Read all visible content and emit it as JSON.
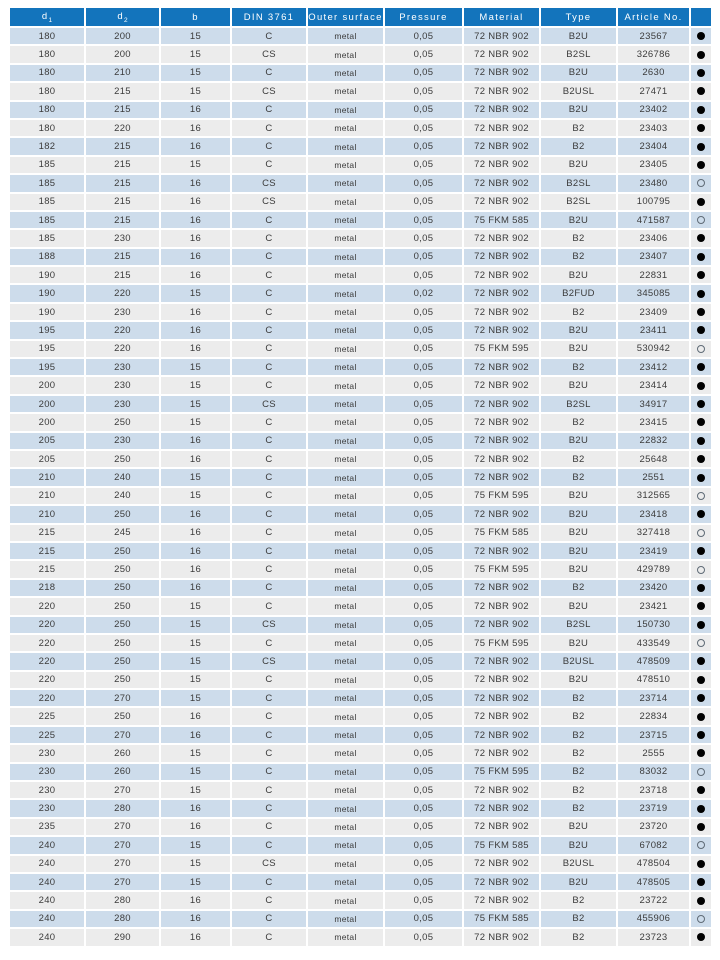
{
  "colors": {
    "header_background": "#1374BC",
    "header_text": "#FFFFFF",
    "row_alternate_blue": "#CDDCEB",
    "row_alternate_gray": "#ECECEC",
    "cell_text": "#3B3B3B",
    "availability_filled_dot": "#000000",
    "availability_open_ring": "#5F6B76"
  },
  "table": {
    "columns": [
      {
        "key": "d1",
        "label": "d",
        "sub": "1"
      },
      {
        "key": "d2",
        "label": "d",
        "sub": "2"
      },
      {
        "key": "b",
        "label": "b",
        "sub": ""
      },
      {
        "key": "din-3761",
        "label": "DIN 3761",
        "sub": ""
      },
      {
        "key": "outer-surface",
        "label": "Outer surface",
        "sub": ""
      },
      {
        "key": "pressure",
        "label": "Pressure",
        "sub": ""
      },
      {
        "key": "material",
        "label": "Material",
        "sub": ""
      },
      {
        "key": "type",
        "label": "Type",
        "sub": ""
      },
      {
        "key": "article-no",
        "label": "Article No.",
        "sub": ""
      },
      {
        "key": "availability",
        "label": "",
        "sub": ""
      }
    ],
    "rows": [
      [
        "180",
        "200",
        "15",
        "C",
        "metal",
        "0,05",
        "72 NBR 902",
        "B2U",
        "23567",
        "filled"
      ],
      [
        "180",
        "200",
        "15",
        "CS",
        "metal",
        "0,05",
        "72 NBR 902",
        "B2SL",
        "326786",
        "filled"
      ],
      [
        "180",
        "210",
        "15",
        "C",
        "metal",
        "0,05",
        "72 NBR 902",
        "B2U",
        "2630",
        "filled"
      ],
      [
        "180",
        "215",
        "15",
        "CS",
        "metal",
        "0,05",
        "72 NBR 902",
        "B2USL",
        "27471",
        "filled"
      ],
      [
        "180",
        "215",
        "16",
        "C",
        "metal",
        "0,05",
        "72 NBR 902",
        "B2U",
        "23402",
        "filled"
      ],
      [
        "180",
        "220",
        "16",
        "C",
        "metal",
        "0,05",
        "72 NBR 902",
        "B2",
        "23403",
        "filled"
      ],
      [
        "182",
        "215",
        "16",
        "C",
        "metal",
        "0,05",
        "72 NBR 902",
        "B2",
        "23404",
        "filled"
      ],
      [
        "185",
        "215",
        "15",
        "C",
        "metal",
        "0,05",
        "72 NBR 902",
        "B2U",
        "23405",
        "filled"
      ],
      [
        "185",
        "215",
        "16",
        "CS",
        "metal",
        "0,05",
        "72 NBR 902",
        "B2SL",
        "23480",
        "open"
      ],
      [
        "185",
        "215",
        "16",
        "CS",
        "metal",
        "0,05",
        "72 NBR 902",
        "B2SL",
        "100795",
        "filled"
      ],
      [
        "185",
        "215",
        "16",
        "C",
        "metal",
        "0,05",
        "75 FKM 585",
        "B2U",
        "471587",
        "open"
      ],
      [
        "185",
        "230",
        "16",
        "C",
        "metal",
        "0,05",
        "72 NBR 902",
        "B2",
        "23406",
        "filled"
      ],
      [
        "188",
        "215",
        "16",
        "C",
        "metal",
        "0,05",
        "72 NBR 902",
        "B2",
        "23407",
        "filled"
      ],
      [
        "190",
        "215",
        "16",
        "C",
        "metal",
        "0,05",
        "72 NBR 902",
        "B2U",
        "22831",
        "filled"
      ],
      [
        "190",
        "220",
        "15",
        "C",
        "metal",
        "0,02",
        "72 NBR 902",
        "B2FUD",
        "345085",
        "filled"
      ],
      [
        "190",
        "230",
        "16",
        "C",
        "metal",
        "0,05",
        "72 NBR 902",
        "B2",
        "23409",
        "filled"
      ],
      [
        "195",
        "220",
        "16",
        "C",
        "metal",
        "0,05",
        "72 NBR 902",
        "B2U",
        "23411",
        "filled"
      ],
      [
        "195",
        "220",
        "16",
        "C",
        "metal",
        "0,05",
        "75 FKM 595",
        "B2U",
        "530942",
        "open"
      ],
      [
        "195",
        "230",
        "15",
        "C",
        "metal",
        "0,05",
        "72 NBR 902",
        "B2",
        "23412",
        "filled"
      ],
      [
        "200",
        "230",
        "15",
        "C",
        "metal",
        "0,05",
        "72 NBR 902",
        "B2U",
        "23414",
        "filled"
      ],
      [
        "200",
        "230",
        "15",
        "CS",
        "metal",
        "0,05",
        "72 NBR 902",
        "B2SL",
        "34917",
        "filled"
      ],
      [
        "200",
        "250",
        "15",
        "C",
        "metal",
        "0,05",
        "72 NBR 902",
        "B2",
        "23415",
        "filled"
      ],
      [
        "205",
        "230",
        "16",
        "C",
        "metal",
        "0,05",
        "72 NBR 902",
        "B2U",
        "22832",
        "filled"
      ],
      [
        "205",
        "250",
        "16",
        "C",
        "metal",
        "0,05",
        "72 NBR 902",
        "B2",
        "25648",
        "filled"
      ],
      [
        "210",
        "240",
        "15",
        "C",
        "metal",
        "0,05",
        "72 NBR 902",
        "B2",
        "2551",
        "filled"
      ],
      [
        "210",
        "240",
        "15",
        "C",
        "metal",
        "0,05",
        "75 FKM 595",
        "B2U",
        "312565",
        "open"
      ],
      [
        "210",
        "250",
        "16",
        "C",
        "metal",
        "0,05",
        "72 NBR 902",
        "B2U",
        "23418",
        "filled"
      ],
      [
        "215",
        "245",
        "16",
        "C",
        "metal",
        "0,05",
        "75 FKM 585",
        "B2U",
        "327418",
        "open"
      ],
      [
        "215",
        "250",
        "16",
        "C",
        "metal",
        "0,05",
        "72 NBR 902",
        "B2U",
        "23419",
        "filled"
      ],
      [
        "215",
        "250",
        "16",
        "C",
        "metal",
        "0,05",
        "75 FKM 595",
        "B2U",
        "429789",
        "open"
      ],
      [
        "218",
        "250",
        "16",
        "C",
        "metal",
        "0,05",
        "72 NBR 902",
        "B2",
        "23420",
        "filled"
      ],
      [
        "220",
        "250",
        "15",
        "C",
        "metal",
        "0,05",
        "72 NBR 902",
        "B2U",
        "23421",
        "filled"
      ],
      [
        "220",
        "250",
        "15",
        "CS",
        "metal",
        "0,05",
        "72 NBR 902",
        "B2SL",
        "150730",
        "filled"
      ],
      [
        "220",
        "250",
        "15",
        "C",
        "metal",
        "0,05",
        "75 FKM 595",
        "B2U",
        "433549",
        "open"
      ],
      [
        "220",
        "250",
        "15",
        "CS",
        "metal",
        "0,05",
        "72 NBR 902",
        "B2USL",
        "478509",
        "filled"
      ],
      [
        "220",
        "250",
        "15",
        "C",
        "metal",
        "0,05",
        "72 NBR 902",
        "B2U",
        "478510",
        "filled"
      ],
      [
        "220",
        "270",
        "15",
        "C",
        "metal",
        "0,05",
        "72 NBR 902",
        "B2",
        "23714",
        "filled"
      ],
      [
        "225",
        "250",
        "16",
        "C",
        "metal",
        "0,05",
        "72 NBR 902",
        "B2",
        "22834",
        "filled"
      ],
      [
        "225",
        "270",
        "16",
        "C",
        "metal",
        "0,05",
        "72 NBR 902",
        "B2",
        "23715",
        "filled"
      ],
      [
        "230",
        "260",
        "15",
        "C",
        "metal",
        "0,05",
        "72 NBR 902",
        "B2",
        "2555",
        "filled"
      ],
      [
        "230",
        "260",
        "15",
        "C",
        "metal",
        "0,05",
        "75 FKM 595",
        "B2",
        "83032",
        "open"
      ],
      [
        "230",
        "270",
        "15",
        "C",
        "metal",
        "0,05",
        "72 NBR 902",
        "B2",
        "23718",
        "filled"
      ],
      [
        "230",
        "280",
        "16",
        "C",
        "metal",
        "0,05",
        "72 NBR 902",
        "B2",
        "23719",
        "filled"
      ],
      [
        "235",
        "270",
        "16",
        "C",
        "metal",
        "0,05",
        "72 NBR 902",
        "B2U",
        "23720",
        "filled"
      ],
      [
        "240",
        "270",
        "15",
        "C",
        "metal",
        "0,05",
        "75 FKM 585",
        "B2U",
        "67082",
        "open"
      ],
      [
        "240",
        "270",
        "15",
        "CS",
        "metal",
        "0,05",
        "72 NBR 902",
        "B2USL",
        "478504",
        "filled"
      ],
      [
        "240",
        "270",
        "15",
        "C",
        "metal",
        "0,05",
        "72 NBR 902",
        "B2U",
        "478505",
        "filled"
      ],
      [
        "240",
        "280",
        "16",
        "C",
        "metal",
        "0,05",
        "72 NBR 902",
        "B2",
        "23722",
        "filled"
      ],
      [
        "240",
        "280",
        "16",
        "C",
        "metal",
        "0,05",
        "75 FKM 585",
        "B2",
        "455906",
        "open"
      ],
      [
        "240",
        "290",
        "16",
        "C",
        "metal",
        "0,05",
        "72 NBR 902",
        "B2",
        "23723",
        "filled"
      ]
    ]
  }
}
